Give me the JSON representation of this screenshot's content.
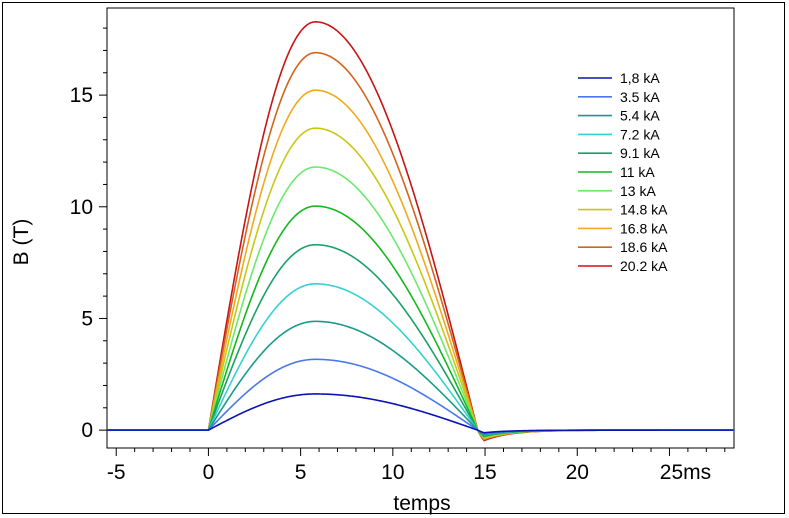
{
  "chart_data": {
    "type": "line",
    "xlabel": "temps",
    "ylabel": "B (T)",
    "x_unit_label": "25ms",
    "xlim": [
      -5.5,
      28.5
    ],
    "ylim": [
      -0.8,
      18.9
    ],
    "x_ticks": [
      -5,
      0,
      5,
      10,
      15,
      20,
      25
    ],
    "x_tick_labels": [
      "-5",
      "0",
      "5",
      "10",
      "15",
      "20",
      "25ms"
    ],
    "y_ticks": [
      0,
      5,
      10,
      15
    ],
    "y_tick_labels": [
      "0",
      "5",
      "10",
      "15"
    ],
    "grid": false,
    "legend_position": "top-right",
    "pulse_start_ms": 0,
    "peak_time_ms": 5.8,
    "pulse_end_ms": 14.6,
    "series": [
      {
        "name": "1,8 kA",
        "color": "#0a14b4",
        "peak": 1.62,
        "undershoot": -0.15
      },
      {
        "name": "3.5 kA",
        "color": "#4a78ea",
        "peak": 3.17,
        "undershoot": -0.2
      },
      {
        "name": "5.4 kA",
        "color": "#189a8c",
        "peak": 4.87,
        "undershoot": -0.25
      },
      {
        "name": "7.2 kA",
        "color": "#34d2d2",
        "peak": 6.55,
        "undershoot": -0.28
      },
      {
        "name": "9.1 kA",
        "color": "#1aa068",
        "peak": 8.3,
        "undershoot": -0.32
      },
      {
        "name": "11 kA",
        "color": "#14b81e",
        "peak": 10.03,
        "undershoot": -0.36
      },
      {
        "name": "13 kA",
        "color": "#6ee86e",
        "peak": 11.78,
        "undershoot": -0.4
      },
      {
        "name": "14.8 kA",
        "color": "#c8c814",
        "peak": 13.52,
        "undershoot": -0.45
      },
      {
        "name": "16.8 kA",
        "color": "#f0aa1e",
        "peak": 15.22,
        "undershoot": -0.5
      },
      {
        "name": "18.6 kA",
        "color": "#d2641e",
        "peak": 16.9,
        "undershoot": -0.55
      },
      {
        "name": "20.2 kA",
        "color": "#c81414",
        "peak": 18.28,
        "undershoot": -0.6
      }
    ]
  }
}
